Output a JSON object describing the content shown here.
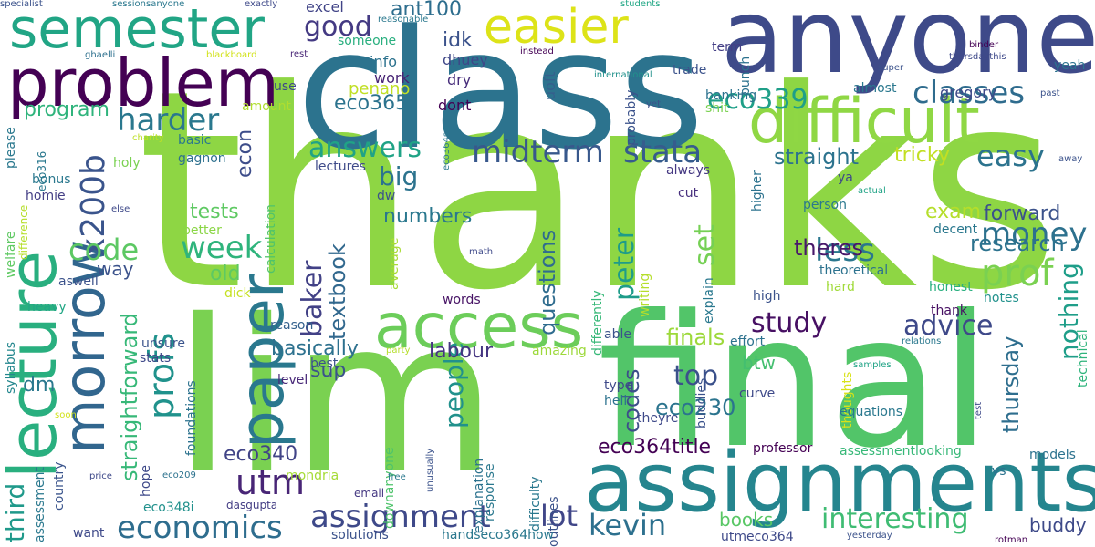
{
  "words": [
    {
      "text": "thanks",
      "color": "#8ed644"
    },
    {
      "text": "class",
      "color": "#2c738e"
    },
    {
      "text": "final",
      "color": "#52c569"
    },
    {
      "text": "lim",
      "color": "#7ad151"
    },
    {
      "text": "anyone",
      "color": "#3e4a89"
    },
    {
      "text": "assignments",
      "color": "#25858e"
    },
    {
      "text": "problem",
      "color": "#440154"
    },
    {
      "text": "semester",
      "color": "#21a585"
    },
    {
      "text": "lecture",
      "color": "#29af7f"
    },
    {
      "text": "difficult",
      "color": "#8fd744"
    },
    {
      "text": "access",
      "color": "#6ccd5a"
    },
    {
      "text": "morrow",
      "color": "#31668e"
    },
    {
      "text": "paper",
      "color": "#2a788e"
    },
    {
      "text": "easier",
      "color": "#dde318"
    },
    {
      "text": "x200b",
      "color": "#3a548c"
    },
    {
      "text": "economics",
      "color": "#2e6d8e"
    },
    {
      "text": "assignment",
      "color": "#3e4989"
    },
    {
      "text": "utm",
      "color": "#482576"
    },
    {
      "text": "profs",
      "color": "#20928c"
    },
    {
      "text": "prof",
      "color": "#7ad151"
    },
    {
      "text": "money",
      "color": "#2d718e"
    },
    {
      "text": "midterm",
      "color": "#38588c"
    },
    {
      "text": "stata",
      "color": "#365c8d"
    },
    {
      "text": "classes",
      "color": "#2f6c8e"
    },
    {
      "text": "easy",
      "color": "#2c738e"
    },
    {
      "text": "week",
      "color": "#2fb47c"
    },
    {
      "text": "code",
      "color": "#5cc863"
    },
    {
      "text": "harder",
      "color": "#2a788e"
    },
    {
      "text": "answers",
      "color": "#20a386"
    },
    {
      "text": "eco339",
      "color": "#1f9f88"
    },
    {
      "text": "good",
      "color": "#443a83"
    },
    {
      "text": "less",
      "color": "#2a778e"
    },
    {
      "text": "kevin",
      "color": "#2d708e"
    },
    {
      "text": "lot",
      "color": "#404688"
    },
    {
      "text": "top",
      "color": "#3b518b"
    },
    {
      "text": "study",
      "color": "#471063"
    },
    {
      "text": "advice",
      "color": "#3e4989"
    },
    {
      "text": "interesting",
      "color": "#3fbc73"
    },
    {
      "text": "baker",
      "color": "#424186"
    },
    {
      "text": "peter",
      "color": "#1e9c89"
    },
    {
      "text": "people",
      "color": "#21918c"
    },
    {
      "text": "third",
      "color": "#1f998a"
    },
    {
      "text": "straightforward",
      "color": "#37b878"
    },
    {
      "text": "research",
      "color": "#2c728e"
    },
    {
      "text": "forward",
      "color": "#3b528b"
    },
    {
      "text": "nothing",
      "color": "#1f9e89"
    },
    {
      "text": "set",
      "color": "#75d054"
    },
    {
      "text": "textbook",
      "color": "#31688e"
    },
    {
      "text": "questions",
      "color": "#2f6c8e"
    },
    {
      "text": "straight",
      "color": "#2c738e"
    },
    {
      "text": "tricky",
      "color": "#c2df23"
    },
    {
      "text": "thursday",
      "color": "#2e6e8e"
    },
    {
      "text": "eco365",
      "color": "#2c738e"
    },
    {
      "text": "numbers",
      "color": "#2a788e"
    },
    {
      "text": "big",
      "color": "#2c738e"
    },
    {
      "text": "eco340",
      "color": "#414487"
    },
    {
      "text": "eco230",
      "color": "#2b748e"
    },
    {
      "text": "theres",
      "color": "#48186a"
    },
    {
      "text": "basically",
      "color": "#2d718e"
    },
    {
      "text": "codes",
      "color": "#3d4e8a"
    },
    {
      "text": "finals",
      "color": "#9dd93b"
    },
    {
      "text": "eco364title",
      "color": "#440154"
    },
    {
      "text": "labour",
      "color": "#453581"
    },
    {
      "text": "exam",
      "color": "#b5de2b"
    },
    {
      "text": "ant100",
      "color": "#2e6e8e"
    },
    {
      "text": "idk",
      "color": "#3b528b"
    },
    {
      "text": "penano",
      "color": "#c0df25"
    },
    {
      "text": "program",
      "color": "#2fb47c"
    },
    {
      "text": "econ",
      "color": "#3d4d8a"
    },
    {
      "text": "sup",
      "color": "#3b528b"
    },
    {
      "text": "books",
      "color": "#58c765"
    },
    {
      "text": "buddy",
      "color": "#3e4a89"
    },
    {
      "text": "old",
      "color": "#5ec962"
    },
    {
      "text": "tests",
      "color": "#5ec962"
    },
    {
      "text": "dm",
      "color": "#2a788e"
    },
    {
      "text": "way",
      "color": "#3b528b"
    },
    {
      "text": "btw",
      "color": "#44bf70"
    },
    {
      "text": "info",
      "color": "#2c728e"
    },
    {
      "text": "dhuey",
      "color": "#3f4788"
    },
    {
      "text": "dry",
      "color": "#472d7b"
    },
    {
      "text": "work",
      "color": "#482475"
    },
    {
      "text": "dont",
      "color": "#440154"
    },
    {
      "text": "uoft",
      "color": "#355f8d"
    },
    {
      "text": "excel",
      "color": "#414487"
    },
    {
      "text": "someone",
      "color": "#29af7f"
    },
    {
      "text": "use",
      "color": "#3e4989"
    },
    {
      "text": "amount",
      "color": "#b0dd2f"
    },
    {
      "text": "basic",
      "color": "#2a788e"
    },
    {
      "text": "holy",
      "color": "#7ad151"
    },
    {
      "text": "gagnon",
      "color": "#2d708e"
    },
    {
      "text": "bonus",
      "color": "#2a788e"
    },
    {
      "text": "homie",
      "color": "#433e85"
    },
    {
      "text": "aswell",
      "color": "#3b528b"
    },
    {
      "text": "heavy",
      "color": "#22a785"
    },
    {
      "text": "lectures",
      "color": "#3e4a89"
    },
    {
      "text": "calculation",
      "color": "#4ec36b"
    },
    {
      "text": "better",
      "color": "#8bd646"
    },
    {
      "text": "always",
      "color": "#453882"
    },
    {
      "text": "cut",
      "color": "#472f7d"
    },
    {
      "text": "dw",
      "color": "#3b528b"
    },
    {
      "text": "words",
      "color": "#471365"
    },
    {
      "text": "average",
      "color": "#a8db34"
    },
    {
      "text": "reason",
      "color": "#34618d"
    },
    {
      "text": "unsure",
      "color": "#3a548c"
    },
    {
      "text": "stats",
      "color": "#3e4989"
    },
    {
      "text": "best",
      "color": "#3b528b"
    },
    {
      "text": "level",
      "color": "#482878"
    },
    {
      "text": "dick",
      "color": "#c5e021"
    },
    {
      "text": "mondria",
      "color": "#a5db36"
    },
    {
      "text": "foundations",
      "color": "#2c728e"
    },
    {
      "text": "hope",
      "color": "#3e4989"
    },
    {
      "text": "eco348i",
      "color": "#21918c"
    },
    {
      "text": "dasgupta",
      "color": "#433d84"
    },
    {
      "text": "email",
      "color": "#453882"
    },
    {
      "text": "solutions",
      "color": "#3b528b"
    },
    {
      "text": "want",
      "color": "#3e4989"
    },
    {
      "text": "country",
      "color": "#3a548c"
    },
    {
      "text": "assessment",
      "color": "#2a788e"
    },
    {
      "text": "syllabus",
      "color": "#24878e"
    },
    {
      "text": "welfare",
      "color": "#5ec962"
    },
    {
      "text": "please",
      "color": "#2a788e"
    },
    {
      "text": "difference",
      "color": "#b5de2b"
    },
    {
      "text": "eco316",
      "color": "#2a788e"
    },
    {
      "text": "else",
      "color": "#3e4989"
    },
    {
      "text": "charity",
      "color": "#bddf26"
    },
    {
      "text": "ghaelli",
      "color": "#2d708e"
    },
    {
      "text": "blackboard",
      "color": "#d2e21b"
    },
    {
      "text": "specialist",
      "color": "#3b528b"
    },
    {
      "text": "sessionsanyone",
      "color": "#2a788e"
    },
    {
      "text": "exactly",
      "color": "#3e4989"
    },
    {
      "text": "rest",
      "color": "#482576"
    },
    {
      "text": "reasonable",
      "color": "#2a788e"
    },
    {
      "text": "students",
      "color": "#22a785"
    },
    {
      "text": "instead",
      "color": "#440154"
    },
    {
      "text": "international",
      "color": "#21918c"
    },
    {
      "text": "trade",
      "color": "#3b528b"
    },
    {
      "text": "term",
      "color": "#433e85"
    },
    {
      "text": "bunch",
      "color": "#2c728e"
    },
    {
      "text": "binder",
      "color": "#440154"
    },
    {
      "text": "thursdaythis",
      "color": "#3e4989"
    },
    {
      "text": "super",
      "color": "#3b528b"
    },
    {
      "text": "past",
      "color": "#3b528b"
    },
    {
      "text": "yeah",
      "color": "#2c728e"
    },
    {
      "text": "almost",
      "color": "#2a788e"
    },
    {
      "text": "gregory",
      "color": "#3e4989"
    },
    {
      "text": "banking",
      "color": "#2c728e"
    },
    {
      "text": "shit",
      "color": "#7ad151"
    },
    {
      "text": "probably",
      "color": "#3b528b"
    },
    {
      "text": "yet",
      "color": "#3b528b"
    },
    {
      "text": "higher",
      "color": "#2c728e"
    },
    {
      "text": "ya",
      "color": "#3e4989"
    },
    {
      "text": "person",
      "color": "#2a788e"
    },
    {
      "text": "actual",
      "color": "#20a386"
    },
    {
      "text": "away",
      "color": "#3b528b"
    },
    {
      "text": "decent",
      "color": "#2a788e"
    },
    {
      "text": "honest",
      "color": "#29af7f"
    },
    {
      "text": "theoretical",
      "color": "#2c728e"
    },
    {
      "text": "hard",
      "color": "#a0da39"
    },
    {
      "text": "notes",
      "color": "#21918c"
    },
    {
      "text": "high",
      "color": "#3b528b"
    },
    {
      "text": "thank",
      "color": "#471063"
    },
    {
      "text": "explain",
      "color": "#2a788e"
    },
    {
      "text": "effort",
      "color": "#2c728e"
    },
    {
      "text": "able",
      "color": "#3b528b"
    },
    {
      "text": "relations",
      "color": "#2a788e"
    },
    {
      "text": "technical",
      "color": "#2fb47c"
    },
    {
      "text": "amazing",
      "color": "#9dd93b"
    },
    {
      "text": "party",
      "color": "#b5de2b"
    },
    {
      "text": "type",
      "color": "#3e4989"
    },
    {
      "text": "hell",
      "color": "#2c728e"
    },
    {
      "text": "theyre",
      "color": "#3e4989"
    },
    {
      "text": "curve",
      "color": "#3e4989"
    },
    {
      "text": "buddies",
      "color": "#3b528b"
    },
    {
      "text": "thoughts",
      "color": "#d8e219"
    },
    {
      "text": "equations",
      "color": "#2a788e"
    },
    {
      "text": "test",
      "color": "#3e4989"
    },
    {
      "text": "samples",
      "color": "#20a386"
    },
    {
      "text": "professor",
      "color": "#440154"
    },
    {
      "text": "assessmentlooking",
      "color": "#37b878"
    },
    {
      "text": "models",
      "color": "#2c728e"
    },
    {
      "text": "vs",
      "color": "#2c728e"
    },
    {
      "text": "utmeco364",
      "color": "#3e4989"
    },
    {
      "text": "yesterday",
      "color": "#3b528b"
    },
    {
      "text": "rotman",
      "color": "#440154"
    },
    {
      "text": "outlines",
      "color": "#3b528b"
    },
    {
      "text": "difficulty",
      "color": "#2a788e"
    },
    {
      "text": "response",
      "color": "#2a788e"
    },
    {
      "text": "explanation",
      "color": "#2c728e"
    },
    {
      "text": "handseco364how",
      "color": "#2a788e"
    },
    {
      "text": "downanyone",
      "color": "#4ec36b"
    },
    {
      "text": "unusually",
      "color": "#3b528b"
    },
    {
      "text": "free",
      "color": "#2a788e"
    },
    {
      "text": "eco209",
      "color": "#2c728e"
    },
    {
      "text": "price",
      "color": "#3e4989"
    },
    {
      "text": "soon",
      "color": "#d2e21b"
    },
    {
      "text": "differently",
      "color": "#37b878"
    },
    {
      "text": "writing",
      "color": "#b5de2b"
    },
    {
      "text": "math",
      "color": "#3e4989"
    },
    {
      "text": "eco364so",
      "color": "#2a788e"
    }
  ]
}
